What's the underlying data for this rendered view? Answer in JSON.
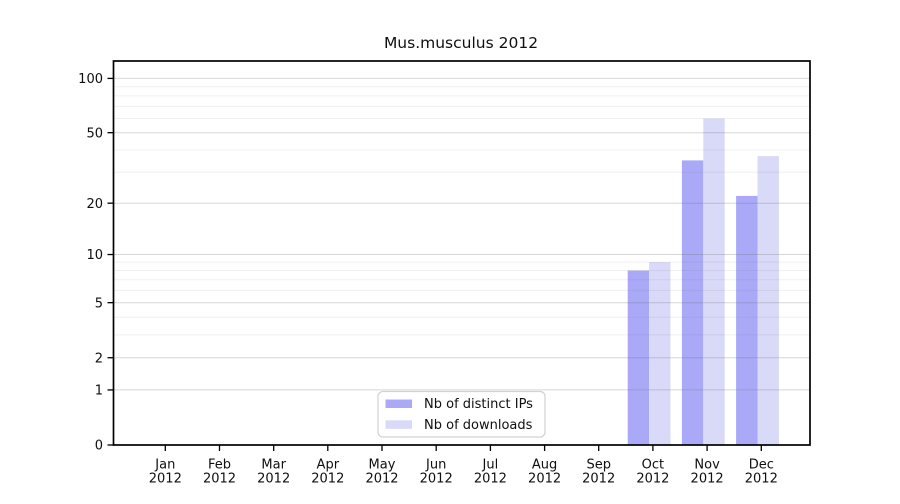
{
  "figure": {
    "background": "#ffffff"
  },
  "chart_data": {
    "type": "bar",
    "title": "Mus.musculus 2012",
    "categories": [
      "Jan",
      "Feb",
      "Mar",
      "Apr",
      "May",
      "Jun",
      "Jul",
      "Aug",
      "Sep",
      "Oct",
      "Nov",
      "Dec"
    ],
    "category_year": "2012",
    "series": [
      {
        "name": "Nb of distinct IPs",
        "color": "#a9a9f8",
        "values": [
          0,
          0,
          0,
          0,
          0,
          0,
          0,
          0,
          0,
          8,
          35,
          22
        ]
      },
      {
        "name": "Nb of downloads",
        "color": "#d9d9f8",
        "values": [
          0,
          0,
          0,
          0,
          0,
          0,
          0,
          0,
          0,
          9,
          60,
          37
        ]
      }
    ],
    "xlabel": "",
    "ylabel": "",
    "y_scale": "log10(value+1)",
    "y_ticks_major": [
      0,
      1,
      2,
      5,
      10,
      20,
      50,
      100
    ],
    "y_ticks_minor": [
      3,
      4,
      6,
      7,
      8,
      9,
      30,
      40,
      60,
      70,
      80,
      90
    ],
    "ylim": [
      0,
      125
    ],
    "grid": "horizontal",
    "legend_position": "inside-bottom-center",
    "colors": {
      "spine": "#000000",
      "grid_major": "#d6d6d6",
      "grid_minor": "#f0f0f0",
      "legend_border": "#d2d2d2"
    }
  }
}
